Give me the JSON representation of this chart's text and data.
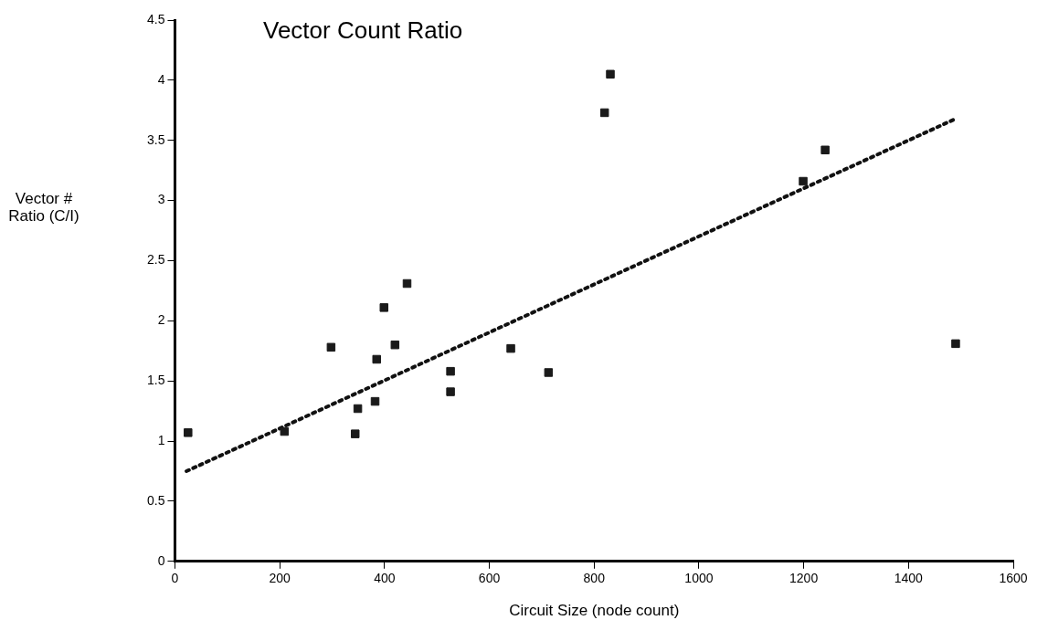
{
  "chart_data": {
    "type": "scatter",
    "title": "Vector Count Ratio",
    "xlabel": "Circuit Size (node count)",
    "ylabel": "Vector # Ratio (C/I)",
    "xlim": [
      0,
      1600
    ],
    "xticks": [
      0,
      200,
      400,
      600,
      800,
      1000,
      1200,
      1400,
      1600
    ],
    "ylim": [
      0,
      4.5
    ],
    "yticks": [
      0,
      0.5,
      1,
      1.5,
      2,
      2.5,
      3,
      3.5,
      4,
      4.5
    ],
    "grid": false,
    "legend": false,
    "series": [
      {
        "type": "scatter",
        "color": "#1a1a1a",
        "marker": "square",
        "x": [
          25,
          209,
          298,
          344,
          349,
          382,
          385,
          399,
          420,
          443,
          526,
          526,
          641,
          713,
          820,
          831,
          1199,
          1241,
          1490
        ],
        "values": [
          1.07,
          1.08,
          1.78,
          1.06,
          1.27,
          1.33,
          1.68,
          2.11,
          1.8,
          2.31,
          1.58,
          1.41,
          1.77,
          1.57,
          3.73,
          4.05,
          3.16,
          3.42,
          1.81
        ]
      },
      {
        "type": "line",
        "color": "#111111",
        "marker": "none",
        "line_style": "dotted",
        "x": [
          22,
          1490
        ],
        "values": [
          0.75,
          3.68
        ]
      }
    ]
  }
}
